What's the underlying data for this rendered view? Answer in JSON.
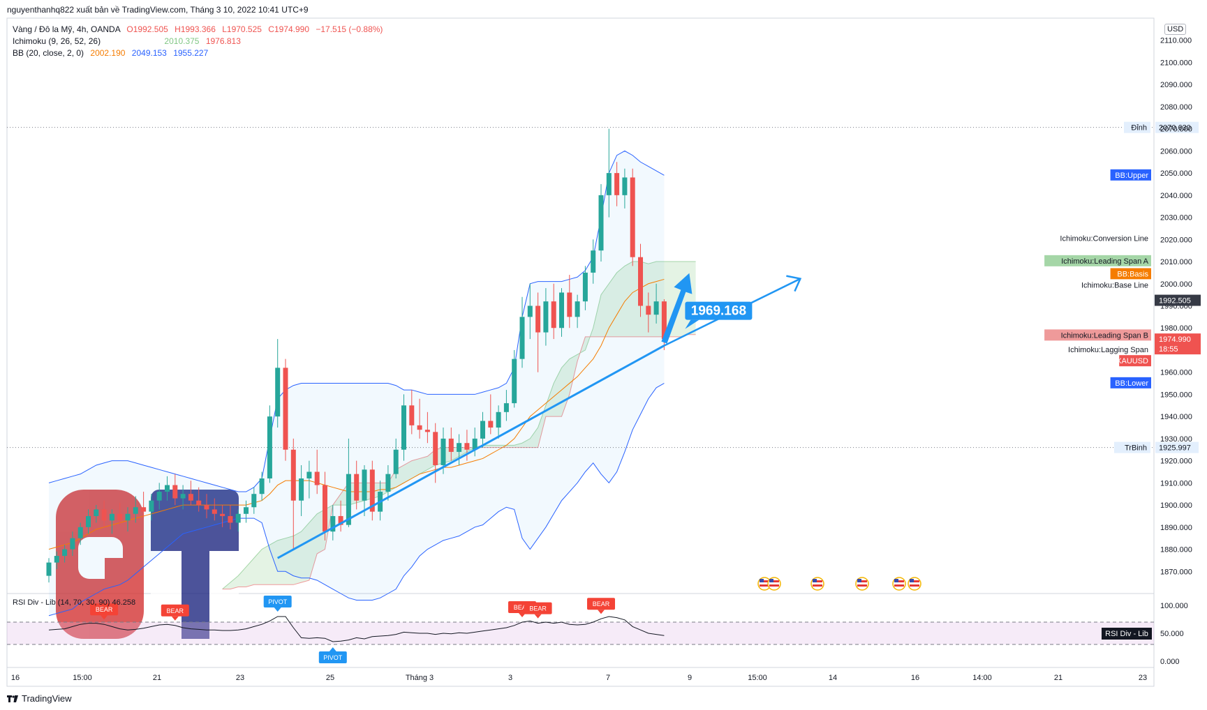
{
  "header": {
    "publisher": "nguyenthanhq822 xuất bản về TradingView.com, Tháng 3 10, 2022 10:41 UTC+9"
  },
  "legend": {
    "symbol": "Vàng / Đô la Mỹ, 4h, OANDA",
    "ohlc": {
      "o": "O1992.505",
      "h": "H1993.366",
      "l": "L1970.525",
      "c": "C1974.990",
      "chg": "−17.515 (−0.88%)"
    },
    "ichimoku": {
      "label": "Ichimoku (9, 26, 52, 26)",
      "span_a": "2010.375",
      "span_b": "1976.813"
    },
    "bb": {
      "label": "BB (20, close, 2, 0)",
      "basis": "2002.190",
      "upper": "2049.153",
      "lower": "1955.227"
    }
  },
  "currency": "USD",
  "rsi_legend": "RSI Div - Lib (14, 70, 30, 90)   46.258",
  "footer": {
    "brand": "TradingView"
  },
  "colors": {
    "up": "#26a69a",
    "down": "#ef5350",
    "bb": "#2962ff",
    "basis": "#f57c00",
    "cloud": "#a5d6a7",
    "annotation": "#2196f3"
  },
  "chart_data": {
    "type": "candlestick",
    "symbol": "XAUUSD",
    "timeframe": "4h",
    "ylim": [
      1860,
      2120
    ],
    "y_ticks": [
      1870,
      1880,
      1890,
      1900,
      1910,
      1920,
      1930,
      1940,
      1950,
      1960,
      1970,
      1980,
      1990,
      2000,
      2010,
      2020,
      2030,
      2040,
      2050,
      2060,
      2070,
      2080,
      2090,
      2100,
      2110
    ],
    "y_tick_labels": [
      "1870.000",
      "1880.000",
      "1890.000",
      "1900.000",
      "1910.000",
      "1920.000",
      "1930.000",
      "1940.000",
      "1950.000",
      "1960.000",
      "1970.000",
      "1980.000",
      "1990.000",
      "2000.000",
      "2010.000",
      "2020.000",
      "2030.000",
      "2040.000",
      "2050.000",
      "2060.000",
      "2070.000",
      "2080.000",
      "2090.000",
      "2100.000",
      "2110.000"
    ],
    "x_labels": [
      "16",
      "15:00",
      "21",
      "23",
      "25",
      "Tháng 3",
      "3",
      "7",
      "9",
      "15:00",
      "14",
      "16",
      "14:00",
      "21",
      "23"
    ],
    "candles": [
      [
        1868,
        1876,
        1865,
        1874
      ],
      [
        1874,
        1879,
        1871,
        1877
      ],
      [
        1877,
        1882,
        1874,
        1880
      ],
      [
        1880,
        1888,
        1877,
        1885
      ],
      [
        1885,
        1892,
        1882,
        1890
      ],
      [
        1890,
        1898,
        1887,
        1895
      ],
      [
        1895,
        1900,
        1892,
        1898
      ],
      [
        1898,
        1902,
        1890,
        1893
      ],
      [
        1893,
        1898,
        1887,
        1896
      ],
      [
        1896,
        1901,
        1891,
        1893
      ],
      [
        1893,
        1899,
        1888,
        1896
      ],
      [
        1896,
        1904,
        1892,
        1899
      ],
      [
        1899,
        1906,
        1894,
        1897
      ],
      [
        1897,
        1905,
        1893,
        1902
      ],
      [
        1902,
        1910,
        1898,
        1906
      ],
      [
        1906,
        1913,
        1902,
        1909
      ],
      [
        1909,
        1914,
        1900,
        1903
      ],
      [
        1903,
        1909,
        1898,
        1905
      ],
      [
        1905,
        1911,
        1900,
        1902
      ],
      [
        1902,
        1908,
        1897,
        1900
      ],
      [
        1900,
        1905,
        1894,
        1898
      ],
      [
        1898,
        1903,
        1893,
        1896
      ],
      [
        1896,
        1900,
        1890,
        1895
      ],
      [
        1895,
        1900,
        1889,
        1892
      ],
      [
        1892,
        1898,
        1888,
        1896
      ],
      [
        1896,
        1902,
        1892,
        1899
      ],
      [
        1899,
        1908,
        1896,
        1905
      ],
      [
        1905,
        1915,
        1902,
        1912
      ],
      [
        1912,
        1945,
        1910,
        1940
      ],
      [
        1940,
        1975,
        1935,
        1962
      ],
      [
        1962,
        1966,
        1920,
        1925
      ],
      [
        1925,
        1930,
        1880,
        1902
      ],
      [
        1902,
        1918,
        1895,
        1912
      ],
      [
        1912,
        1920,
        1903,
        1915
      ],
      [
        1915,
        1925,
        1905,
        1909
      ],
      [
        1909,
        1915,
        1884,
        1888
      ],
      [
        1888,
        1900,
        1884,
        1895
      ],
      [
        1895,
        1902,
        1888,
        1891
      ],
      [
        1891,
        1930,
        1890,
        1914
      ],
      [
        1914,
        1920,
        1898,
        1902
      ],
      [
        1902,
        1918,
        1895,
        1916
      ],
      [
        1916,
        1920,
        1893,
        1897
      ],
      [
        1897,
        1911,
        1893,
        1906
      ],
      [
        1906,
        1918,
        1902,
        1914
      ],
      [
        1914,
        1930,
        1912,
        1925
      ],
      [
        1925,
        1950,
        1920,
        1945
      ],
      [
        1945,
        1952,
        1932,
        1936
      ],
      [
        1936,
        1948,
        1930,
        1934
      ],
      [
        1934,
        1942,
        1928,
        1933
      ],
      [
        1933,
        1937,
        1910,
        1918
      ],
      [
        1918,
        1935,
        1914,
        1930
      ],
      [
        1930,
        1935,
        1920,
        1924
      ],
      [
        1924,
        1932,
        1918,
        1928
      ],
      [
        1928,
        1934,
        1920,
        1925
      ],
      [
        1925,
        1935,
        1922,
        1930
      ],
      [
        1930,
        1942,
        1926,
        1938
      ],
      [
        1938,
        1950,
        1932,
        1935
      ],
      [
        1935,
        1945,
        1930,
        1942
      ],
      [
        1942,
        1952,
        1938,
        1946
      ],
      [
        1946,
        1970,
        1944,
        1966
      ],
      [
        1966,
        1994,
        1962,
        1985
      ],
      [
        1985,
        2000,
        1975,
        1990
      ],
      [
        1990,
        1996,
        1960,
        1978
      ],
      [
        1978,
        1998,
        1972,
        1992
      ],
      [
        1992,
        2000,
        1975,
        1980
      ],
      [
        1980,
        1998,
        1976,
        1996
      ],
      [
        1996,
        2004,
        1980,
        1985
      ],
      [
        1985,
        1995,
        1980,
        1992
      ],
      [
        1992,
        2008,
        1988,
        2005
      ],
      [
        2005,
        2020,
        2000,
        2015
      ],
      [
        2015,
        2045,
        2010,
        2040
      ],
      [
        2040,
        2070,
        2030,
        2050
      ],
      [
        2050,
        2055,
        2035,
        2040
      ],
      [
        2040,
        2052,
        2034,
        2048
      ],
      [
        2048,
        2052,
        2008,
        2012
      ],
      [
        2012,
        2018,
        1985,
        1990
      ],
      [
        1990,
        1996,
        1978,
        1986
      ],
      [
        1986,
        2000,
        1982,
        1992
      ],
      [
        1992,
        1993,
        1970,
        1975
      ]
    ],
    "bb_upper": [
      1910,
      1911,
      1912,
      1913,
      1914,
      1916,
      1918,
      1919,
      1920,
      1920,
      1920,
      1919,
      1918,
      1917,
      1916,
      1915,
      1914,
      1913,
      1912,
      1911,
      1910,
      1909,
      1908,
      1907,
      1906,
      1906,
      1908,
      1912,
      1930,
      1948,
      1952,
      1954,
      1955,
      1955,
      1955,
      1955,
      1955,
      1955,
      1955,
      1955,
      1955,
      1955,
      1955,
      1955,
      1954,
      1952,
      1952,
      1951,
      1950,
      1950,
      1950,
      1950,
      1950,
      1950,
      1950,
      1951,
      1952,
      1953,
      1955,
      1962,
      1985,
      2000,
      2001,
      2001,
      2001,
      2001,
      2002,
      2003,
      2006,
      2012,
      2030,
      2050,
      2058,
      2060,
      2058,
      2055,
      2053,
      2051,
      2049
    ],
    "bb_basis": [
      1880,
      1881,
      1882,
      1883,
      1885,
      1887,
      1889,
      1890,
      1891,
      1892,
      1893,
      1894,
      1895,
      1896,
      1897,
      1898,
      1899,
      1900,
      1900,
      1900,
      1900,
      1900,
      1900,
      1900,
      1900,
      1900,
      1901,
      1902,
      1905,
      1909,
      1911,
      1911,
      1911,
      1911,
      1910,
      1909,
      1908,
      1907,
      1906,
      1906,
      1906,
      1906,
      1907,
      1907,
      1908,
      1910,
      1912,
      1914,
      1915,
      1916,
      1917,
      1917,
      1918,
      1919,
      1920,
      1921,
      1923,
      1925,
      1927,
      1930,
      1935,
      1940,
      1943,
      1946,
      1949,
      1952,
      1955,
      1958,
      1962,
      1966,
      1972,
      1980,
      1986,
      1992,
      1996,
      1998,
      2000,
      2001,
      2002
    ],
    "bb_lower": [
      1850,
      1851,
      1852,
      1853,
      1856,
      1858,
      1860,
      1862,
      1863,
      1864,
      1866,
      1869,
      1872,
      1875,
      1878,
      1881,
      1884,
      1887,
      1888,
      1889,
      1890,
      1891,
      1892,
      1893,
      1894,
      1894,
      1894,
      1892,
      1880,
      1870,
      1870,
      1868,
      1867,
      1867,
      1866,
      1864,
      1862,
      1860,
      1858,
      1857,
      1857,
      1857,
      1858,
      1860,
      1862,
      1868,
      1872,
      1877,
      1880,
      1882,
      1884,
      1885,
      1886,
      1888,
      1890,
      1891,
      1894,
      1897,
      1899,
      1898,
      1885,
      1880,
      1885,
      1890,
      1896,
      1902,
      1906,
      1910,
      1915,
      1919,
      1914,
      1910,
      1915,
      1924,
      1934,
      1941,
      1948,
      1953,
      1955
    ],
    "cloud_start_index": 22,
    "cloud_offset": 26,
    "span_a": [
      1862,
      1865,
      1868,
      1872,
      1876,
      1880,
      1882,
      1884,
      1885,
      1886,
      1888,
      1892,
      1896,
      1898,
      1900,
      1900,
      1900,
      1901,
      1902,
      1903,
      1904,
      1906,
      1908,
      1910,
      1912,
      1914,
      1916,
      1918,
      1919,
      1920,
      1922,
      1924,
      1926,
      1927,
      1927,
      1927,
      1927,
      1927,
      1928,
      1930,
      1935,
      1945,
      1955,
      1962,
      1966,
      1968,
      1970,
      1980,
      1995,
      2000,
      2005,
      2008,
      2010,
      2010,
      2009,
      2010,
      2010,
      2010,
      2010,
      2010,
      2010
    ],
    "span_b": [
      1862,
      1862,
      1863,
      1863,
      1864,
      1864,
      1864,
      1864,
      1864,
      1864,
      1865,
      1866,
      1878,
      1880,
      1900,
      1905,
      1910,
      1910,
      1910,
      1910,
      1910,
      1910,
      1916,
      1918,
      1920,
      1921,
      1922,
      1925,
      1926,
      1926,
      1926,
      1926,
      1926,
      1926,
      1926,
      1926,
      1926,
      1926,
      1926,
      1926,
      1926,
      1940,
      1940,
      1940,
      1950,
      1965,
      1976,
      1976,
      1976,
      1976,
      1976,
      1976,
      1976,
      1976,
      1976,
      1976,
      1976,
      1976,
      1976,
      1977,
      1977
    ],
    "trendline": {
      "from": [
        29,
        1876
      ],
      "to": [
        78,
        1972
      ]
    },
    "annotations": {
      "label": "1969.168",
      "lines": [
        {
          "label": "Đỉnh",
          "value": 2070.63,
          "price": "2070.630"
        },
        {
          "label": "TrBinh",
          "value": 1925.997,
          "price": "1925.997"
        }
      ]
    },
    "right_tags": [
      {
        "text": "BB:Upper",
        "value": 2049.153,
        "style": "blue"
      },
      {
        "text": "Ichimoku:Conversion Line",
        "value": 2020.5,
        "style": "plain"
      },
      {
        "text": "Ichimoku:Leading Span A",
        "value": 2010.375,
        "style": "green"
      },
      {
        "text": "BB:Basis",
        "value": 2004.5,
        "style": "orange"
      },
      {
        "text": "Ichimoku:Base Line",
        "value": 1999.5,
        "style": "plain"
      },
      {
        "text": "Ichimoku:Leading Span B",
        "value": 1976.813,
        "style": "pink"
      },
      {
        "text": "Ichimoku:Lagging Span",
        "value": 1970.3,
        "style": "plain"
      },
      {
        "text": "XAUUSD",
        "value": 1965.2,
        "style": "red"
      },
      {
        "text": "BB:Lower",
        "value": 1955.227,
        "style": "blue"
      }
    ],
    "price_tags": [
      {
        "text": "1992.505",
        "value": 1992.505,
        "style": "dark"
      },
      {
        "text": "1974.990",
        "sub": "18:55",
        "value": 1974.99,
        "style": "red"
      }
    ],
    "rsi": {
      "ylim": [
        -10,
        120
      ],
      "y_ticks": [
        0,
        50,
        100
      ],
      "y_tick_labels": [
        "0.000",
        "50.000",
        "100.000"
      ],
      "levels": [
        70,
        30
      ],
      "values": [
        56,
        57,
        58,
        62,
        66,
        68,
        68,
        66,
        62,
        58,
        56,
        57,
        59,
        62,
        65,
        66,
        64,
        60,
        58,
        57,
        56,
        56,
        55,
        55,
        56,
        58,
        62,
        66,
        72,
        80,
        80,
        60,
        42,
        41,
        42,
        41,
        35,
        36,
        38,
        42,
        40,
        44,
        45,
        46,
        48,
        52,
        51,
        50,
        50,
        48,
        50,
        49,
        51,
        50,
        52,
        54,
        56,
        58,
        60,
        64,
        70,
        72,
        68,
        70,
        68,
        70,
        66,
        65,
        66,
        70,
        76,
        80,
        78,
        74,
        62,
        56,
        50,
        48,
        46
      ],
      "tag_label": "RSI Div - Lib",
      "signals": [
        {
          "label": "BEAR",
          "index": 7,
          "pos": "above"
        },
        {
          "label": "BEAR",
          "index": 16,
          "pos": "above"
        },
        {
          "label": "PIVOT",
          "index": 29,
          "pos": "above"
        },
        {
          "label": "PIVOT",
          "index": 36,
          "pos": "below"
        },
        {
          "label": "BEAR",
          "index": 60,
          "pos": "above"
        },
        {
          "label": "BEAR",
          "index": 62,
          "pos": "above"
        },
        {
          "label": "BEAR",
          "index": 70,
          "pos": "above"
        }
      ]
    }
  }
}
